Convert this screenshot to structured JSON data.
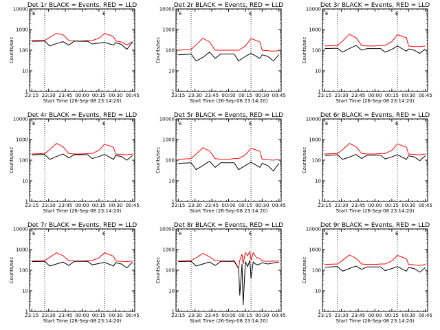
{
  "chart_data": [
    {
      "type": "line",
      "title": "Det 1r BLACK = Events, RED = LLD",
      "flag": "E",
      "xlabel": "Start Time (26-Sep-08 23:14:20)",
      "ylabel": "Counts/sec",
      "yscale": "log",
      "ylim": [
        1,
        10000
      ],
      "x_ticks": [
        "23:15",
        "23:30",
        "23:45",
        "00:00",
        "00:15",
        "00:30",
        "00:45"
      ],
      "y_ticks": [
        "1",
        "10",
        "100",
        "1000",
        "10000"
      ],
      "x": [
        0,
        11.5,
        16,
        22,
        28,
        33,
        38,
        45,
        50,
        54,
        60,
        65,
        73,
        75,
        80,
        85,
        90
      ],
      "series": [
        {
          "name": "RED = LLD",
          "color": "#ff0000",
          "values": [
            290,
            300,
            420,
            650,
            560,
            300,
            280,
            280,
            300,
            290,
            380,
            650,
            460,
            280,
            250,
            180,
            260
          ]
        },
        {
          "name": "BLACK = Events",
          "color": "#000000",
          "values": [
            270,
            280,
            160,
            210,
            260,
            175,
            275,
            270,
            270,
            200,
            220,
            240,
            175,
            230,
            190,
            110,
            250
          ]
        }
      ]
    },
    {
      "type": "line",
      "title": "Det 2r BLACK = Events, RED = LLD",
      "flag": "E",
      "xlabel": "Start Time (26-Sep-08 23:14:20)",
      "ylabel": "Counts/sec",
      "yscale": "log",
      "ylim": [
        1,
        10000
      ],
      "x_ticks": [
        "23:15",
        "23:30",
        "23:45",
        "00:00",
        "00:15",
        "00:30",
        "00:45"
      ],
      "y_ticks": [
        "1",
        "10",
        "100",
        "1000",
        "10000"
      ],
      "x": [
        0,
        11.5,
        16,
        22,
        28,
        33,
        38,
        45,
        50,
        54,
        60,
        65,
        73,
        75,
        80,
        85,
        90
      ],
      "series": [
        {
          "name": "RED = LLD",
          "color": "#ff0000",
          "values": [
            100,
            110,
            180,
            380,
            250,
            100,
            100,
            100,
            100,
            100,
            160,
            370,
            250,
            100,
            95,
            90,
            95
          ]
        },
        {
          "name": "BLACK = Events",
          "color": "#000000",
          "values": [
            60,
            65,
            30,
            45,
            80,
            40,
            65,
            65,
            65,
            30,
            50,
            70,
            40,
            60,
            50,
            30,
            60
          ]
        }
      ]
    },
    {
      "type": "line",
      "title": "Det 3r BLACK = Events, RED = LLD",
      "flag": "E",
      "xlabel": "Start Time (26-Sep-08 23:14:20)",
      "ylabel": "Counts/sec",
      "yscale": "log",
      "ylim": [
        1,
        10000
      ],
      "x_ticks": [
        "23:15",
        "23:30",
        "23:45",
        "00:00",
        "00:15",
        "00:30",
        "00:45"
      ],
      "y_ticks": [
        "1",
        "10",
        "100",
        "1000",
        "10000"
      ],
      "x": [
        0,
        11.5,
        16,
        22,
        28,
        33,
        38,
        45,
        50,
        54,
        60,
        65,
        73,
        75,
        80,
        85,
        90
      ],
      "series": [
        {
          "name": "RED = LLD",
          "color": "#ff0000",
          "values": [
            160,
            170,
            280,
            600,
            400,
            170,
            160,
            160,
            170,
            170,
            260,
            560,
            400,
            160,
            150,
            150,
            160
          ]
        },
        {
          "name": "BLACK = Events",
          "color": "#000000",
          "values": [
            120,
            125,
            80,
            120,
            170,
            100,
            120,
            120,
            120,
            80,
            110,
            160,
            90,
            115,
            100,
            70,
            115
          ]
        }
      ]
    },
    {
      "type": "line",
      "title": "Det 4r BLACK = Events, RED = LLD",
      "flag": "E",
      "xlabel": "Start Time (26-Sep-08 23:14:20)",
      "ylabel": "Counts/sec",
      "yscale": "log",
      "ylim": [
        1,
        10000
      ],
      "x_ticks": [
        "23:15",
        "23:30",
        "23:45",
        "00:00",
        "00:15",
        "00:30",
        "00:45"
      ],
      "y_ticks": [
        "1",
        "10",
        "100",
        "1000",
        "10000"
      ],
      "x": [
        0,
        11.5,
        16,
        22,
        28,
        33,
        38,
        45,
        50,
        54,
        60,
        65,
        73,
        75,
        80,
        85,
        90
      ],
      "series": [
        {
          "name": "RED = LLD",
          "color": "#ff0000",
          "values": [
            200,
            210,
            320,
            650,
            450,
            210,
            200,
            200,
            210,
            210,
            300,
            600,
            420,
            200,
            190,
            180,
            200
          ]
        },
        {
          "name": "BLACK = Events",
          "color": "#000000",
          "values": [
            180,
            190,
            110,
            150,
            200,
            130,
            185,
            185,
            185,
            120,
            150,
            190,
            110,
            170,
            150,
            100,
            170
          ]
        }
      ]
    },
    {
      "type": "line",
      "title": "Det 5r BLACK = Events, RED = LLD",
      "flag": "E",
      "xlabel": "Start Time (26-Sep-08 23:14:20)",
      "ylabel": "Counts/sec",
      "yscale": "log",
      "ylim": [
        1,
        10000
      ],
      "x_ticks": [
        "23:15",
        "23:30",
        "23:45",
        "00:00",
        "00:15",
        "00:30",
        "00:45"
      ],
      "y_ticks": [
        "1",
        "10",
        "100",
        "1000",
        "10000"
      ],
      "x": [
        0,
        11.5,
        16,
        22,
        28,
        33,
        38,
        45,
        50,
        54,
        60,
        65,
        73,
        75,
        80,
        85,
        90
      ],
      "series": [
        {
          "name": "RED = LLD",
          "color": "#ff0000",
          "values": [
            110,
            120,
            200,
            400,
            280,
            120,
            110,
            110,
            120,
            120,
            180,
            380,
            270,
            110,
            105,
            100,
            110
          ]
        },
        {
          "name": "BLACK = Events",
          "color": "#000000",
          "values": [
            70,
            75,
            35,
            55,
            90,
            45,
            75,
            75,
            75,
            35,
            55,
            80,
            45,
            70,
            55,
            30,
            70
          ]
        }
      ]
    },
    {
      "type": "line",
      "title": "Det 6r BLACK = Events, RED = LLD",
      "flag": "E",
      "xlabel": "Start Time (26-Sep-08 23:14:20)",
      "ylabel": "Counts/sec",
      "yscale": "log",
      "ylim": [
        1,
        10000
      ],
      "x_ticks": [
        "23:15",
        "23:30",
        "23:45",
        "00:00",
        "00:15",
        "00:30",
        "00:45"
      ],
      "y_ticks": [
        "1",
        "10",
        "100",
        "1000",
        "10000"
      ],
      "x": [
        0,
        11.5,
        16,
        22,
        28,
        33,
        38,
        45,
        50,
        54,
        60,
        65,
        73,
        75,
        80,
        85,
        90
      ],
      "series": [
        {
          "name": "RED = LLD",
          "color": "#ff0000",
          "values": [
            200,
            210,
            320,
            650,
            450,
            210,
            200,
            200,
            210,
            210,
            300,
            620,
            430,
            200,
            190,
            180,
            200
          ]
        },
        {
          "name": "BLACK = Events",
          "color": "#000000",
          "values": [
            170,
            180,
            110,
            140,
            190,
            120,
            175,
            175,
            175,
            115,
            145,
            185,
            110,
            165,
            145,
            95,
            165
          ]
        }
      ]
    },
    {
      "type": "line",
      "title": "Det 7r BLACK = Events, RED = LLD",
      "flag": "E",
      "xlabel": "Start Time (26-Sep-08 23:14:20)",
      "ylabel": "Counts/sec",
      "yscale": "log",
      "ylim": [
        1,
        10000
      ],
      "x_ticks": [
        "23:15",
        "23:30",
        "23:45",
        "00:00",
        "00:15",
        "00:30",
        "00:45"
      ],
      "y_ticks": [
        "1",
        "10",
        "100",
        "1000",
        "10000"
      ],
      "x": [
        0,
        11.5,
        16,
        22,
        28,
        33,
        38,
        45,
        50,
        54,
        60,
        65,
        73,
        75,
        80,
        85,
        90
      ],
      "series": [
        {
          "name": "RED = LLD",
          "color": "#ff0000",
          "values": [
            280,
            290,
            420,
            700,
            500,
            290,
            280,
            280,
            290,
            290,
            400,
            700,
            480,
            280,
            270,
            260,
            280
          ]
        },
        {
          "name": "BLACK = Events",
          "color": "#000000",
          "values": [
            260,
            270,
            160,
            200,
            250,
            170,
            265,
            265,
            265,
            180,
            210,
            240,
            160,
            230,
            200,
            130,
            250
          ]
        }
      ]
    },
    {
      "type": "line",
      "title": "Det 8r BLACK = Events, RED = LLD",
      "flag": "E",
      "xlabel": "Start Time (26-Sep-08 23:14:20)",
      "ylabel": "Counts/sec",
      "yscale": "log",
      "ylim": [
        1,
        10000
      ],
      "x_ticks": [
        "23:15",
        "23:30",
        "23:45",
        "00:00",
        "00:15",
        "00:30",
        "00:45"
      ],
      "y_ticks": [
        "1",
        "10",
        "100",
        "1000",
        "10000"
      ],
      "x": [
        0,
        11.5,
        16,
        22,
        28,
        33,
        38,
        45,
        50,
        54,
        55,
        57,
        58,
        60,
        62,
        64,
        65,
        67,
        70,
        73,
        75,
        80,
        90
      ],
      "series": [
        {
          "name": "RED = LLD",
          "color": "#ff0000",
          "values": [
            280,
            290,
            400,
            650,
            450,
            290,
            280,
            280,
            290,
            120,
            300,
            600,
            200,
            700,
            500,
            800,
            300,
            700,
            400,
            380,
            280,
            270,
            280
          ]
        },
        {
          "name": "BLACK = Events",
          "color": "#000000",
          "values": [
            260,
            270,
            160,
            200,
            250,
            170,
            265,
            265,
            265,
            120,
            6,
            200,
            2,
            260,
            150,
            300,
            40,
            250,
            180,
            200,
            230,
            200,
            250
          ]
        }
      ]
    },
    {
      "type": "line",
      "title": "Det 9r BLACK = Events, RED = LLD",
      "flag": "E",
      "xlabel": "Start Time (26-Sep-08 23:14:20)",
      "ylabel": "Counts/sec",
      "yscale": "log",
      "ylim": [
        1,
        10000
      ],
      "x_ticks": [
        "23:15",
        "23:30",
        "23:45",
        "00:00",
        "00:15",
        "00:30",
        "00:45"
      ],
      "y_ticks": [
        "1",
        "10",
        "100",
        "1000",
        "10000"
      ],
      "x": [
        0,
        11.5,
        16,
        22,
        28,
        33,
        38,
        45,
        50,
        54,
        60,
        65,
        73,
        75,
        80,
        85,
        90
      ],
      "series": [
        {
          "name": "RED = LLD",
          "color": "#ff0000",
          "values": [
            190,
            200,
            300,
            550,
            380,
            200,
            190,
            190,
            200,
            200,
            280,
            520,
            360,
            190,
            180,
            170,
            190
          ]
        },
        {
          "name": "BLACK = Events",
          "color": "#000000",
          "values": [
            140,
            150,
            90,
            120,
            160,
            110,
            145,
            145,
            145,
            95,
            120,
            150,
            90,
            135,
            120,
            80,
            135
          ]
        }
      ]
    }
  ],
  "dotted_markers": [
    11.5,
    65
  ],
  "xrange": [
    -2,
    92
  ]
}
